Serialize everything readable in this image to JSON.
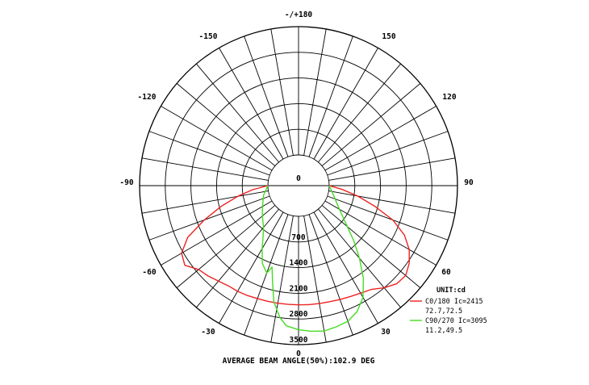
{
  "chart_data": {
    "type": "polar",
    "unit_label": "UNIT:cd",
    "angle_labels": [
      {
        "angle": 180,
        "text": "-/+180"
      },
      {
        "angle": 150,
        "text": "150"
      },
      {
        "angle": -150,
        "text": "-150"
      },
      {
        "angle": 120,
        "text": "120"
      },
      {
        "angle": -120,
        "text": "-120"
      },
      {
        "angle": 90,
        "text": "90"
      },
      {
        "angle": -90,
        "text": "-90"
      },
      {
        "angle": 60,
        "text": "60"
      },
      {
        "angle": -60,
        "text": "-60"
      },
      {
        "angle": 30,
        "text": "30"
      },
      {
        "angle": -30,
        "text": "-30"
      },
      {
        "angle": 0,
        "text": "0"
      }
    ],
    "radial_ticks": [
      "0",
      "700",
      "1400",
      "2100",
      "2800",
      "3500"
    ],
    "rmax": 3500,
    "series": [
      {
        "name": "C0/180 Ic=2415",
        "detail": "72.7,72.5",
        "color": "#ee2222",
        "points": [
          [
            -90,
            0
          ],
          [
            -85,
            420
          ],
          [
            -80,
            850
          ],
          [
            -75,
            1350
          ],
          [
            -70,
            1900
          ],
          [
            -65,
            2500
          ],
          [
            -60,
            2850
          ],
          [
            -55,
            2950
          ],
          [
            -50,
            2720
          ],
          [
            -45,
            2650
          ],
          [
            -40,
            2560
          ],
          [
            -35,
            2500
          ],
          [
            -30,
            2490
          ],
          [
            -25,
            2470
          ],
          [
            -20,
            2440
          ],
          [
            -15,
            2430
          ],
          [
            -10,
            2420
          ],
          [
            -5,
            2415
          ],
          [
            0,
            2415
          ],
          [
            5,
            2420
          ],
          [
            10,
            2430
          ],
          [
            15,
            2440
          ],
          [
            20,
            2470
          ],
          [
            25,
            2500
          ],
          [
            30,
            2550
          ],
          [
            35,
            2620
          ],
          [
            40,
            2800
          ],
          [
            45,
            2950
          ],
          [
            50,
            2980
          ],
          [
            55,
            2850
          ],
          [
            60,
            2650
          ],
          [
            65,
            2350
          ],
          [
            70,
            1900
          ],
          [
            75,
            1300
          ],
          [
            80,
            800
          ],
          [
            85,
            360
          ],
          [
            90,
            0
          ]
        ]
      },
      {
        "name": "C90/270 Ic=3095",
        "detail": "11.2,49.5",
        "color": "#44dd22",
        "points": [
          [
            -90,
            0
          ],
          [
            -75,
            150
          ],
          [
            -60,
            300
          ],
          [
            -50,
            450
          ],
          [
            -40,
            650
          ],
          [
            -35,
            850
          ],
          [
            -30,
            1150
          ],
          [
            -25,
            1500
          ],
          [
            -20,
            1700
          ],
          [
            -18,
            1500
          ],
          [
            -15,
            1900
          ],
          [
            -12,
            2400
          ],
          [
            -8,
            2800
          ],
          [
            -5,
            3000
          ],
          [
            0,
            3095
          ],
          [
            5,
            3150
          ],
          [
            10,
            3190
          ],
          [
            15,
            3150
          ],
          [
            20,
            3100
          ],
          [
            25,
            2950
          ],
          [
            30,
            2680
          ],
          [
            35,
            2250
          ],
          [
            40,
            1750
          ],
          [
            45,
            1300
          ],
          [
            50,
            900
          ],
          [
            60,
            450
          ],
          [
            75,
            150
          ],
          [
            90,
            0
          ]
        ]
      }
    ],
    "footer": "AVERAGE BEAM ANGLE(50%):102.9 DEG"
  }
}
